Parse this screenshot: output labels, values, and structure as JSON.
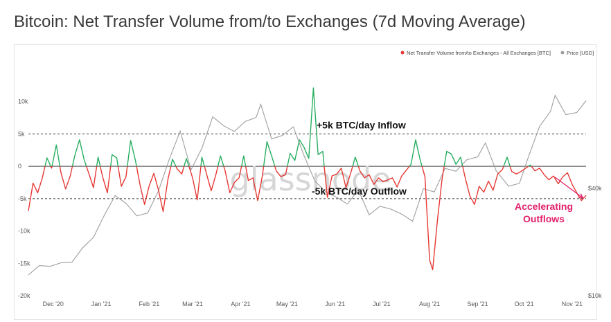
{
  "page_title": "Bitcoin: Net Transfer Volume from/to Exchanges (7d Moving Average)",
  "watermark": "glassnode",
  "chart_data": {
    "type": "line",
    "title": "Bitcoin: Net Transfer Volume from/to Exchanges (7d Moving Average)",
    "legend_position": "top-right",
    "grid": false,
    "x_ticks": [
      "Dec '20",
      "Jan '21",
      "Feb '21",
      "Mar '21",
      "Apr '21",
      "May '21",
      "Jun '21",
      "Jul '21",
      "Aug '21",
      "Sep '21",
      "Oct '21",
      "Nov '21"
    ],
    "x_range": [
      "2020-11-15",
      "2021-11-10"
    ],
    "y_left": {
      "ticks": [
        "10k",
        "5k",
        "0",
        "-5k",
        "-10k",
        "-15k",
        "-20k"
      ],
      "range": [
        -20000,
        12000
      ]
    },
    "y_right": {
      "ticks": [
        "$40k",
        "$10k"
      ],
      "range_usd": [
        10000,
        70000
      ]
    },
    "series": [
      {
        "name": "Net Transfer Volume from/to Exchanges - All Exchanges [BTC]",
        "axis": "left",
        "color_positive": "#27ae60",
        "color_negative": "#e53935",
        "points": [
          [
            "2020-11-15",
            -6900
          ],
          [
            "2020-11-18",
            -2600
          ],
          [
            "2020-11-21",
            -4100
          ],
          [
            "2020-11-24",
            -1800
          ],
          [
            "2020-11-27",
            1300
          ],
          [
            "2020-11-30",
            -300
          ],
          [
            "2020-12-03",
            3300
          ],
          [
            "2020-12-06",
            -1000
          ],
          [
            "2020-12-09",
            -3500
          ],
          [
            "2020-12-12",
            -1500
          ],
          [
            "2020-12-15",
            1700
          ],
          [
            "2020-12-18",
            4100
          ],
          [
            "2020-12-21",
            1000
          ],
          [
            "2020-12-24",
            -1100
          ],
          [
            "2020-12-27",
            -3300
          ],
          [
            "2020-12-30",
            1400
          ],
          [
            "2021-01-02",
            -1700
          ],
          [
            "2021-01-05",
            -4100
          ],
          [
            "2021-01-08",
            1800
          ],
          [
            "2021-01-11",
            1300
          ],
          [
            "2021-01-14",
            -3100
          ],
          [
            "2021-01-17",
            -1600
          ],
          [
            "2021-01-20",
            4000
          ],
          [
            "2021-01-23",
            1000
          ],
          [
            "2021-01-26",
            -2800
          ],
          [
            "2021-01-29",
            -5900
          ],
          [
            "2021-02-01",
            -3000
          ],
          [
            "2021-02-04",
            -1100
          ],
          [
            "2021-02-07",
            -3700
          ],
          [
            "2021-02-10",
            -7000
          ],
          [
            "2021-02-13",
            -2100
          ],
          [
            "2021-02-16",
            1100
          ],
          [
            "2021-02-19",
            -400
          ],
          [
            "2021-02-22",
            -1200
          ],
          [
            "2021-02-25",
            1200
          ],
          [
            "2021-03-01",
            -1800
          ],
          [
            "2021-03-04",
            -5200
          ],
          [
            "2021-03-07",
            1400
          ],
          [
            "2021-03-10",
            -1200
          ],
          [
            "2021-03-13",
            -3800
          ],
          [
            "2021-03-16",
            -1300
          ],
          [
            "2021-03-19",
            1600
          ],
          [
            "2021-03-22",
            -700
          ],
          [
            "2021-03-25",
            -4100
          ],
          [
            "2021-03-28",
            -2500
          ],
          [
            "2021-03-31",
            -1800
          ],
          [
            "2021-04-03",
            1600
          ],
          [
            "2021-04-06",
            -2200
          ],
          [
            "2021-04-09",
            -1800
          ],
          [
            "2021-04-12",
            -5300
          ],
          [
            "2021-04-15",
            -1500
          ],
          [
            "2021-04-18",
            3800
          ],
          [
            "2021-04-21",
            1600
          ],
          [
            "2021-04-24",
            -700
          ],
          [
            "2021-04-27",
            -1600
          ],
          [
            "2021-04-30",
            -1300
          ],
          [
            "2021-05-03",
            2000
          ],
          [
            "2021-05-06",
            900
          ],
          [
            "2021-05-09",
            4100
          ],
          [
            "2021-05-12",
            2900
          ],
          [
            "2021-05-15",
            1200
          ],
          [
            "2021-05-18",
            12100
          ],
          [
            "2021-05-21",
            1800
          ],
          [
            "2021-05-24",
            2300
          ],
          [
            "2021-05-27",
            -4800
          ],
          [
            "2021-05-30",
            -1500
          ],
          [
            "2021-06-02",
            -1200
          ],
          [
            "2021-06-05",
            -300
          ],
          [
            "2021-06-08",
            -3300
          ],
          [
            "2021-06-11",
            -1100
          ],
          [
            "2021-06-14",
            1400
          ],
          [
            "2021-06-17",
            -700
          ],
          [
            "2021-06-20",
            -1800
          ],
          [
            "2021-06-23",
            -1300
          ],
          [
            "2021-06-26",
            -2800
          ],
          [
            "2021-06-29",
            -1800
          ],
          [
            "2021-07-02",
            -2400
          ],
          [
            "2021-07-05",
            -2100
          ],
          [
            "2021-07-08",
            -1800
          ],
          [
            "2021-07-11",
            -3200
          ],
          [
            "2021-07-14",
            -1500
          ],
          [
            "2021-07-17",
            -600
          ],
          [
            "2021-07-20",
            300
          ],
          [
            "2021-07-23",
            4100
          ],
          [
            "2021-07-26",
            900
          ],
          [
            "2021-07-29",
            -1600
          ],
          [
            "2021-08-01",
            -14500
          ],
          [
            "2021-08-03",
            -16000
          ],
          [
            "2021-08-06",
            -8500
          ],
          [
            "2021-08-09",
            -2100
          ],
          [
            "2021-08-12",
            2300
          ],
          [
            "2021-08-15",
            1900
          ],
          [
            "2021-08-18",
            300
          ],
          [
            "2021-08-21",
            1400
          ],
          [
            "2021-08-24",
            -1800
          ],
          [
            "2021-08-27",
            -4600
          ],
          [
            "2021-08-30",
            -5900
          ],
          [
            "2021-09-02",
            -3100
          ],
          [
            "2021-09-05",
            -4000
          ],
          [
            "2021-09-08",
            -2300
          ],
          [
            "2021-09-11",
            -3700
          ],
          [
            "2021-09-14",
            -1200
          ],
          [
            "2021-09-17",
            -500
          ],
          [
            "2021-09-20",
            1400
          ],
          [
            "2021-09-23",
            -800
          ],
          [
            "2021-09-26",
            -1200
          ],
          [
            "2021-09-29",
            -800
          ],
          [
            "2021-10-02",
            -300
          ],
          [
            "2021-10-05",
            200
          ],
          [
            "2021-10-08",
            -700
          ],
          [
            "2021-10-11",
            -300
          ],
          [
            "2021-10-14",
            -1300
          ],
          [
            "2021-10-17",
            -2100
          ],
          [
            "2021-10-20",
            -1500
          ],
          [
            "2021-10-23",
            -2700
          ],
          [
            "2021-10-26",
            -1600
          ],
          [
            "2021-10-29",
            -1000
          ],
          [
            "2021-11-01",
            -2800
          ],
          [
            "2021-11-04",
            -4100
          ],
          [
            "2021-11-07",
            -5300
          ],
          [
            "2021-11-10",
            -4500
          ]
        ]
      },
      {
        "name": "Price [USD]",
        "axis": "right",
        "color": "#9e9e9e",
        "points": [
          [
            "2020-11-15",
            15800
          ],
          [
            "2020-11-22",
            18400
          ],
          [
            "2020-11-29",
            18200
          ],
          [
            "2020-12-06",
            19200
          ],
          [
            "2020-12-13",
            19300
          ],
          [
            "2020-12-20",
            23400
          ],
          [
            "2020-12-27",
            26300
          ],
          [
            "2021-01-03",
            32500
          ],
          [
            "2021-01-10",
            38000
          ],
          [
            "2021-01-17",
            35800
          ],
          [
            "2021-01-24",
            32300
          ],
          [
            "2021-01-31",
            33100
          ],
          [
            "2021-02-07",
            39300
          ],
          [
            "2021-02-14",
            48200
          ],
          [
            "2021-02-21",
            56000
          ],
          [
            "2021-02-28",
            45200
          ],
          [
            "2021-03-07",
            51200
          ],
          [
            "2021-03-14",
            60000
          ],
          [
            "2021-03-21",
            57500
          ],
          [
            "2021-03-28",
            55900
          ],
          [
            "2021-04-04",
            58700
          ],
          [
            "2021-04-11",
            59800
          ],
          [
            "2021-04-14",
            63500
          ],
          [
            "2021-04-21",
            53800
          ],
          [
            "2021-04-28",
            54800
          ],
          [
            "2021-05-05",
            57200
          ],
          [
            "2021-05-12",
            49100
          ],
          [
            "2021-05-19",
            42000
          ],
          [
            "2021-05-26",
            39000
          ],
          [
            "2021-06-02",
            37500
          ],
          [
            "2021-06-09",
            35600
          ],
          [
            "2021-06-16",
            39600
          ],
          [
            "2021-06-23",
            32600
          ],
          [
            "2021-06-30",
            35000
          ],
          [
            "2021-07-07",
            34200
          ],
          [
            "2021-07-14",
            32800
          ],
          [
            "2021-07-21",
            30800
          ],
          [
            "2021-07-28",
            39900
          ],
          [
            "2021-08-04",
            39000
          ],
          [
            "2021-08-11",
            45600
          ],
          [
            "2021-08-18",
            44800
          ],
          [
            "2021-08-25",
            48000
          ],
          [
            "2021-09-01",
            48800
          ],
          [
            "2021-09-06",
            52700
          ],
          [
            "2021-09-13",
            44900
          ],
          [
            "2021-09-21",
            40600
          ],
          [
            "2021-09-28",
            41400
          ],
          [
            "2021-10-04",
            49100
          ],
          [
            "2021-10-11",
            57300
          ],
          [
            "2021-10-18",
            61500
          ],
          [
            "2021-10-21",
            66000
          ],
          [
            "2021-10-28",
            60600
          ],
          [
            "2021-11-04",
            61200
          ],
          [
            "2021-11-10",
            64500
          ]
        ]
      }
    ],
    "reference_lines": [
      {
        "y": 5000,
        "label": "+5k BTC/day Inflow",
        "style": "dashed"
      },
      {
        "y": 0,
        "style": "solid"
      },
      {
        "y": -5000,
        "label": "-5k BTC/day Outflow",
        "style": "dashed"
      }
    ],
    "annotations": [
      {
        "text": [
          "Accelerating",
          "Outflows"
        ],
        "color": "#e0206a",
        "arrow_from": [
          "2021-10-21",
          -1700
        ],
        "arrow_to": [
          "2021-11-08",
          -4900
        ]
      }
    ]
  }
}
